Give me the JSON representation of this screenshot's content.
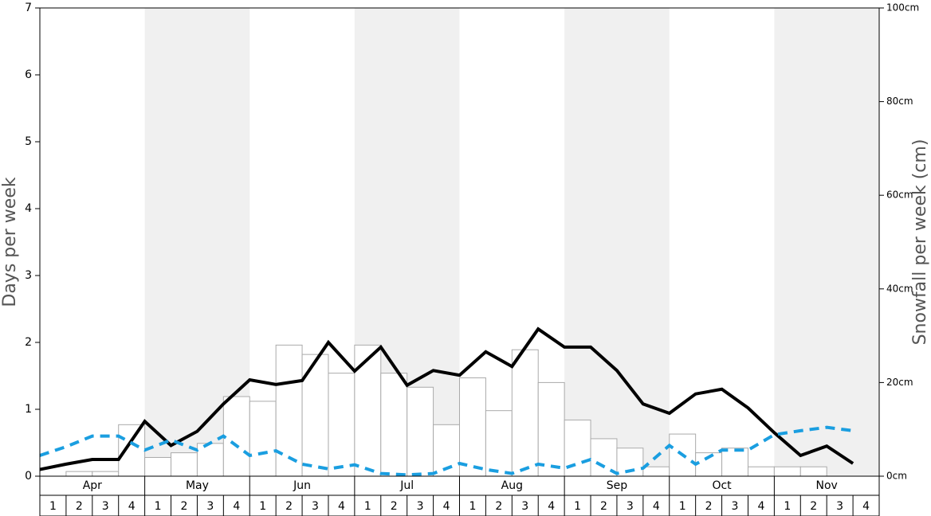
{
  "chart_data": {
    "type": "bar-line",
    "ylabel": "Days per week",
    "y2label": "Snowfall per week (cm)",
    "months": [
      "Apr",
      "May",
      "Jun",
      "Jul",
      "Aug",
      "Sep",
      "Oct",
      "Nov"
    ],
    "shaded_months": [
      false,
      true,
      false,
      true,
      false,
      true,
      false,
      true
    ],
    "shade_color": "#f0f0f0",
    "categories": [
      "1",
      "2",
      "3",
      "4",
      "1",
      "2",
      "3",
      "4",
      "1",
      "2",
      "3",
      "4",
      "1",
      "2",
      "3",
      "4",
      "1",
      "2",
      "3",
      "4",
      "1",
      "2",
      "3",
      "4",
      "1",
      "2",
      "3",
      "4",
      "1",
      "2",
      "3",
      "4"
    ],
    "ylim": [
      0,
      7
    ],
    "yticks": [
      0,
      1,
      2,
      3,
      4,
      5,
      6,
      7
    ],
    "y2lim": [
      0,
      100
    ],
    "y2ticks": [
      {
        "value": 0,
        "label": "0cm"
      },
      {
        "value": 20,
        "label": "20cm"
      },
      {
        "value": 40,
        "label": "40cm"
      },
      {
        "value": 60,
        "label": "60cm"
      },
      {
        "value": 80,
        "label": "80cm"
      },
      {
        "value": 100,
        "label": "100cm"
      }
    ],
    "series": [
      {
        "kind": "bar",
        "axis": "y2",
        "color": "#ffffff",
        "edge_color": "#aaaaaa",
        "values": [
          0,
          1,
          1,
          11,
          4,
          5,
          7,
          17,
          16,
          28,
          26,
          22,
          28,
          22,
          19,
          11,
          21,
          14,
          27,
          20,
          12,
          8,
          6,
          2,
          9,
          5,
          6,
          2,
          2,
          2,
          0,
          0
        ]
      },
      {
        "kind": "line",
        "axis": "y",
        "color": "#000000",
        "style": "solid",
        "values": [
          0.1,
          0.18,
          0.25,
          0.25,
          0.82,
          0.46,
          0.67,
          1.08,
          1.44,
          1.37,
          1.43,
          2.0,
          1.57,
          1.93,
          1.36,
          1.58,
          1.51,
          1.86,
          1.64,
          2.2,
          1.93,
          1.93,
          1.58,
          1.08,
          0.94,
          1.23,
          1.3,
          1.02,
          0.65,
          0.31,
          0.45,
          0.19
        ]
      },
      {
        "kind": "line",
        "axis": "y",
        "color": "#1a9ee0",
        "style": "dashed",
        "values": [
          0.31,
          0.44,
          0.6,
          0.6,
          0.39,
          0.54,
          0.39,
          0.6,
          0.31,
          0.38,
          0.18,
          0.11,
          0.17,
          0.04,
          0.02,
          0.04,
          0.19,
          0.1,
          0.04,
          0.18,
          0.12,
          0.25,
          0.04,
          0.12,
          0.46,
          0.18,
          0.39,
          0.39,
          0.62,
          0.68,
          0.73,
          0.68
        ]
      }
    ]
  }
}
